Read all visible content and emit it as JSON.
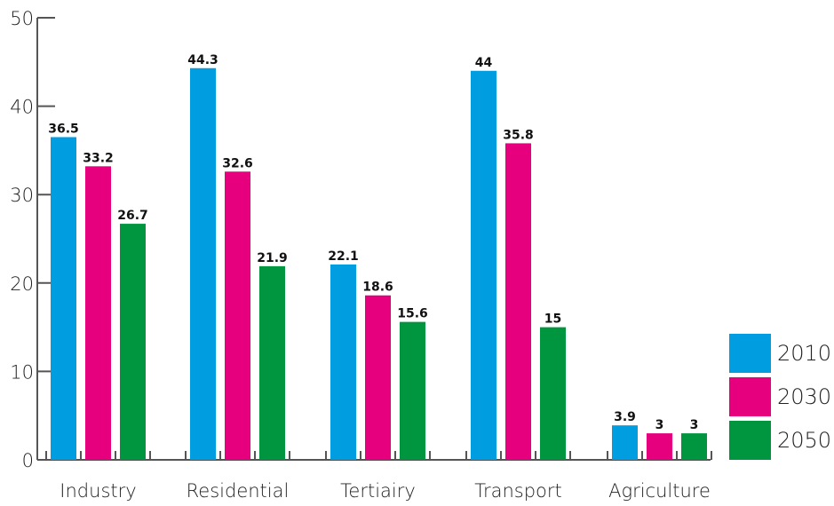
{
  "chart_data": {
    "type": "bar",
    "categories": [
      "Industry",
      "Residential",
      "Tertiairy",
      "Transport",
      "Agriculture"
    ],
    "series": [
      {
        "name": "2010",
        "color": "#009ee0",
        "values": [
          36.5,
          44.3,
          22.1,
          44,
          3.9
        ],
        "labels": [
          "36.5",
          "44.3",
          "22.1",
          "44",
          "3.9"
        ]
      },
      {
        "name": "2030",
        "color": "#e6007e",
        "values": [
          33.2,
          32.6,
          18.6,
          35.8,
          3
        ],
        "labels": [
          "33.2",
          "32.6",
          "18.6",
          "35.8",
          "3"
        ]
      },
      {
        "name": "2050",
        "color": "#009640",
        "values": [
          26.7,
          21.9,
          15.6,
          15,
          3
        ],
        "labels": [
          "26.7",
          "21.9",
          "15.6",
          "15",
          "3"
        ]
      }
    ],
    "yticks": [
      0,
      10,
      20,
      30,
      40,
      50
    ],
    "ytick_labels": [
      "0",
      "10",
      "20",
      "30",
      "40",
      "50"
    ],
    "ylim": [
      0,
      50
    ],
    "title": "",
    "xlabel": "",
    "ylabel": "",
    "grid": false,
    "legend_position": "bottom-right"
  }
}
